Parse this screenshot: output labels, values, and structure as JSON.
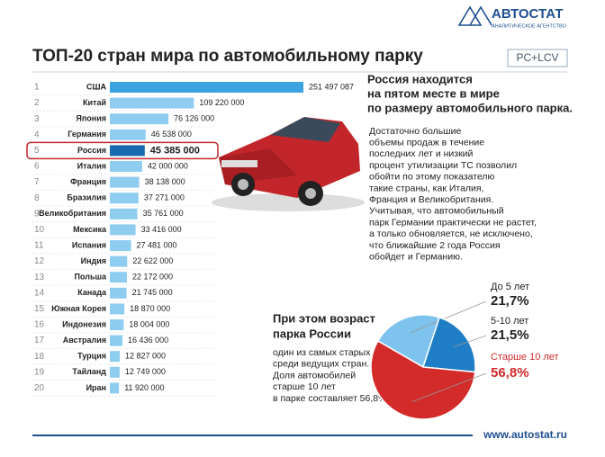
{
  "header": {
    "logo": "АВТОСТАТ",
    "logo_sub": "АНАЛИТИЧЕСКОЕ АГЕНТСТВО",
    "title": "ТОП-20 стран мира по автомобильному парку",
    "badge": "PC+LCV"
  },
  "chart_data": [
    {
      "type": "bar",
      "orientation": "horizontal",
      "ranks": [
        1,
        2,
        3,
        4,
        5,
        6,
        7,
        8,
        9,
        10,
        11,
        12,
        13,
        14,
        15,
        16,
        17,
        18,
        19,
        20
      ],
      "categories": [
        "США",
        "Китай",
        "Япония",
        "Германия",
        "Россия",
        "Италия",
        "Франция",
        "Бразилия",
        "Великобритания",
        "Мексика",
        "Испания",
        "Индия",
        "Польша",
        "Канада",
        "Южная Корея",
        "Индонезия",
        "Австралия",
        "Турция",
        "Тайланд",
        "Иран"
      ],
      "values": [
        251497087,
        109220000,
        76126000,
        46538000,
        45385000,
        42000000,
        38138000,
        37271000,
        35761000,
        33416000,
        27481000,
        22622000,
        22172000,
        21745000,
        18870000,
        18004000,
        16436000,
        12827000,
        12749000,
        11920000
      ],
      "value_labels": [
        "251 497 087",
        "109 220 000",
        "76 126 000",
        "46 538 000",
        "45 385 000",
        "42 000 000",
        "38 138 000",
        "37 271 000",
        "35 761 000",
        "33 416 000",
        "27 481 000",
        "22 622 000",
        "22 172 000",
        "21 745 000",
        "18 870 000",
        "18 004 000",
        "16 436 000",
        "12 827 000",
        "12 749 000",
        "11 920 000"
      ],
      "colors": [
        "#3ca3e3",
        "#8fcdf0",
        "#8fcdf0",
        "#8fcdf0",
        "#1769b0",
        "#8fcdf0",
        "#8fcdf0",
        "#8fcdf0",
        "#8fcdf0",
        "#8fcdf0",
        "#8fcdf0",
        "#8fcdf0",
        "#8fcdf0",
        "#8fcdf0",
        "#8fcdf0",
        "#8fcdf0",
        "#8fcdf0",
        "#8fcdf0",
        "#8fcdf0",
        "#8fcdf0"
      ],
      "highlight_color": "#1769b0"
    },
    {
      "type": "pie",
      "title": [
        "При этом возраст",
        "парка России"
      ],
      "categories": [
        "До 5 лет",
        "5-10 лет",
        "Старше 10 лет"
      ],
      "values": [
        21.7,
        21.5,
        56.8
      ],
      "value_labels": [
        "21,7%",
        "21,5%",
        "56,8%"
      ],
      "colors": [
        "#7ec3ee",
        "#1f7ec6",
        "#d32a2a"
      ],
      "label_colors": [
        "#222222",
        "#222222",
        "#d32a2a"
      ]
    }
  ],
  "text": {
    "russia_heading": [
      "Россия находится",
      "на пятом месте в мире",
      "по размеру автомобильного парка."
    ],
    "russia_body": [
      "Достаточно большие",
      "объемы продаж в течение",
      "последних лет и низкий",
      "процент утилизации ТС позволил",
      "обойти по этому показателю",
      "такие страны, как Италия,",
      "Франция и Великобритания.",
      "Учитывая, что автомобильный",
      "парк Германии практически не растет,",
      "а только обновляется, не исключено,",
      "что ближайшие 2 года Россия",
      "обойдет и Германию."
    ],
    "age_body": [
      "один из самых старых",
      "среди ведущих стран.",
      "Доля автомобилей",
      "старше 10 лет",
      "в парке составляет 56,8%"
    ]
  },
  "footer": "www.autostat.ru"
}
